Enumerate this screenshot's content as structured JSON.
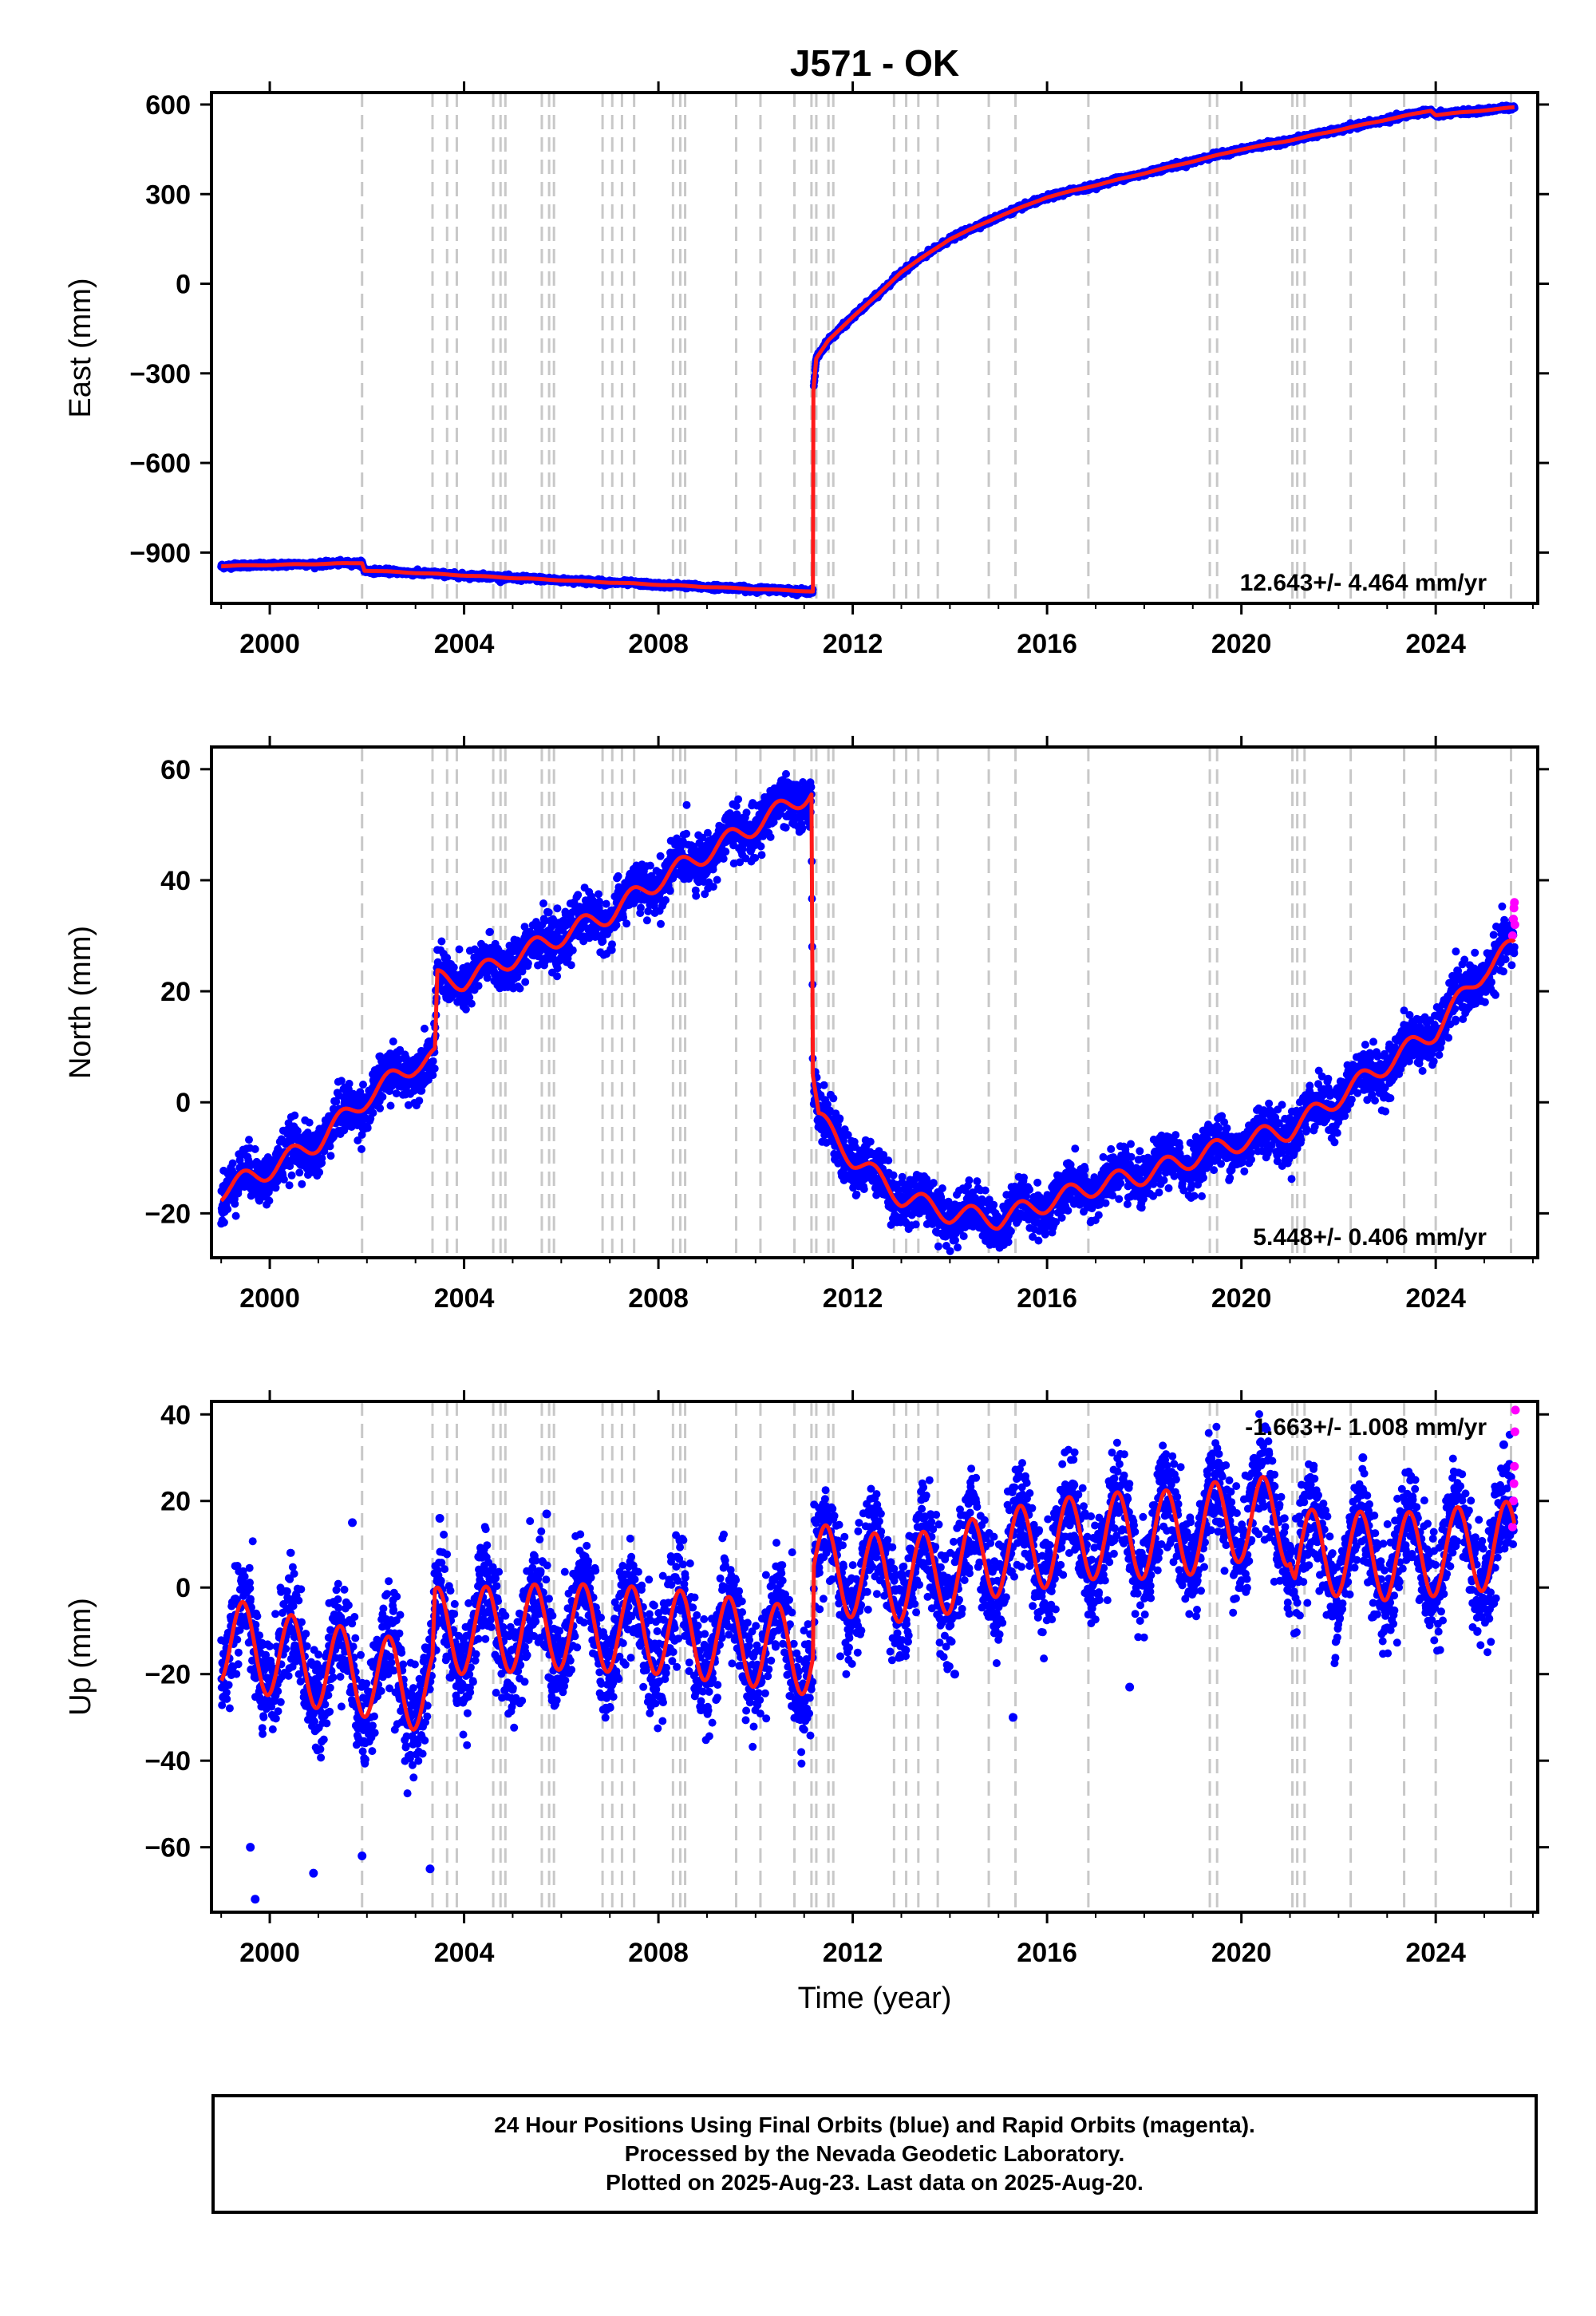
{
  "figure": {
    "title": "J571 - OK",
    "xlabel": "Time (year)",
    "footer": [
      "24 Hour Positions Using Final Orbits (blue) and Rapid Orbits (magenta).",
      "Processed by the Nevada Geodetic Laboratory.",
      "Plotted on 2025-Aug-23. Last data on 2025-Aug-20."
    ]
  },
  "colors": {
    "final_orbits": "#0000ff",
    "rapid_orbits": "#ff00ff",
    "model": "#ff1a1a",
    "event_lines": "#c8c8c8",
    "frame": "#000000"
  },
  "chart_data": [
    {
      "type": "scatter",
      "name": "east",
      "ylabel": "East (mm)",
      "velocity_label": "12.643+/- 4.464 mm/yr",
      "velocity_placement": "bottom-right",
      "xlim": [
        1998.8,
        2026.1
      ],
      "ylim": [
        -1070,
        640
      ],
      "xticks": [
        2000,
        2004,
        2008,
        2012,
        2016,
        2020,
        2024
      ],
      "yticks": [
        -900,
        -600,
        -300,
        0,
        300,
        600
      ],
      "grid": false,
      "model_keypoints": [
        [
          1999.0,
          -945
        ],
        [
          2001.9,
          -935
        ],
        [
          2001.95,
          -960
        ],
        [
          2003.0,
          -968
        ],
        [
          2005.0,
          -985
        ],
        [
          2007.0,
          -1000
        ],
        [
          2009.0,
          -1015
        ],
        [
          2010.0,
          -1022
        ],
        [
          2011.18,
          -1030
        ],
        [
          2011.19,
          -360
        ],
        [
          2011.25,
          -250
        ],
        [
          2011.5,
          -190
        ],
        [
          2012.0,
          -110
        ],
        [
          2012.5,
          -40
        ],
        [
          2013.0,
          40
        ],
        [
          2014.0,
          150
        ],
        [
          2015.0,
          225
        ],
        [
          2016.0,
          290
        ],
        [
          2017.0,
          330
        ],
        [
          2018.0,
          370
        ],
        [
          2019.0,
          410
        ],
        [
          2020.0,
          450
        ],
        [
          2021.0,
          480
        ],
        [
          2022.0,
          515
        ],
        [
          2023.0,
          550
        ],
        [
          2023.9,
          580
        ],
        [
          2024.0,
          565
        ],
        [
          2025.6,
          590
        ]
      ],
      "noise_mm": 4,
      "seasonal_amplitude_mm": 1
    },
    {
      "type": "scatter",
      "name": "north",
      "ylabel": "North (mm)",
      "velocity_label": "5.448+/- 0.406 mm/yr",
      "velocity_placement": "bottom-right",
      "xlim": [
        1998.8,
        2026.1
      ],
      "ylim": [
        -28,
        64
      ],
      "xticks": [
        2000,
        2004,
        2008,
        2012,
        2016,
        2020,
        2024
      ],
      "yticks": [
        -20,
        0,
        20,
        40,
        60
      ],
      "grid": false,
      "model_keypoints": [
        [
          1999.0,
          -16
        ],
        [
          2000.0,
          -12
        ],
        [
          2001.0,
          -7
        ],
        [
          2002.0,
          1
        ],
        [
          2003.0,
          7
        ],
        [
          2003.4,
          8
        ],
        [
          2003.45,
          22
        ],
        [
          2004.0,
          22
        ],
        [
          2005.0,
          26
        ],
        [
          2006.0,
          30
        ],
        [
          2007.0,
          34
        ],
        [
          2008.0,
          40
        ],
        [
          2009.0,
          45
        ],
        [
          2010.0,
          50
        ],
        [
          2011.15,
          56
        ],
        [
          2011.18,
          5
        ],
        [
          2011.3,
          -3
        ],
        [
          2012.0,
          -10
        ],
        [
          2013.0,
          -17
        ],
        [
          2014.0,
          -20
        ],
        [
          2015.0,
          -21
        ],
        [
          2016.0,
          -18
        ],
        [
          2017.0,
          -15
        ],
        [
          2018.0,
          -13
        ],
        [
          2019.0,
          -10
        ],
        [
          2020.0,
          -7
        ],
        [
          2021.0,
          -5
        ],
        [
          2022.0,
          1
        ],
        [
          2023.0,
          7
        ],
        [
          2024.0,
          13
        ],
        [
          2025.0,
          24
        ],
        [
          2025.6,
          28
        ]
      ],
      "noise_mm": 2.2,
      "seasonal_amplitude_mm": 1.8,
      "rapid_points": [
        [
          2025.58,
          30
        ],
        [
          2025.6,
          33
        ],
        [
          2025.61,
          35
        ],
        [
          2025.62,
          36
        ],
        [
          2025.63,
          32
        ]
      ]
    },
    {
      "type": "scatter",
      "name": "up",
      "ylabel": "Up (mm)",
      "velocity_label": "-1.663+/- 1.008 mm/yr",
      "velocity_placement": "top-right",
      "xlim": [
        1998.8,
        2026.1
      ],
      "ylim": [
        -75,
        43
      ],
      "xticks": [
        2000,
        2004,
        2008,
        2012,
        2016,
        2020,
        2024
      ],
      "yticks": [
        -60,
        -40,
        -20,
        0,
        20,
        40
      ],
      "grid": false,
      "model_keypoints": [
        [
          1999.0,
          -12
        ],
        [
          2000.0,
          -15
        ],
        [
          2001.0,
          -18
        ],
        [
          2002.0,
          -20
        ],
        [
          2003.35,
          -24
        ],
        [
          2003.4,
          -10
        ],
        [
          2004.0,
          -10
        ],
        [
          2006.0,
          -9
        ],
        [
          2008.0,
          -10
        ],
        [
          2010.0,
          -13
        ],
        [
          2011.18,
          -15
        ],
        [
          2011.2,
          5
        ],
        [
          2012.0,
          3
        ],
        [
          2013.0,
          2
        ],
        [
          2014.0,
          4
        ],
        [
          2015.0,
          8
        ],
        [
          2016.0,
          10
        ],
        [
          2017.0,
          12
        ],
        [
          2018.0,
          12
        ],
        [
          2019.0,
          13
        ],
        [
          2020.0,
          16
        ],
        [
          2021.0,
          15
        ],
        [
          2021.1,
          8
        ],
        [
          2022.0,
          8
        ],
        [
          2023.0,
          7
        ],
        [
          2024.0,
          8
        ],
        [
          2025.6,
          10
        ]
      ],
      "noise_mm": 6,
      "seasonal_amplitude_mm": 10,
      "outliers": [
        [
          1999.7,
          -72
        ],
        [
          1999.6,
          -60
        ],
        [
          2000.9,
          -66
        ],
        [
          2001.9,
          -62
        ],
        [
          2003.3,
          -65
        ],
        [
          2001.7,
          15
        ],
        [
          2003.5,
          16
        ],
        [
          2005.7,
          17
        ],
        [
          2015.3,
          -30
        ],
        [
          2014.1,
          -20
        ],
        [
          2017.7,
          -23
        ],
        [
          2019.6,
          28
        ],
        [
          2022.5,
          30
        ],
        [
          2025.4,
          33
        ]
      ],
      "rapid_points": [
        [
          2025.58,
          14
        ],
        [
          2025.6,
          20
        ],
        [
          2025.61,
          24
        ],
        [
          2025.62,
          28
        ],
        [
          2025.63,
          36
        ],
        [
          2025.64,
          41
        ]
      ]
    }
  ],
  "event_lines": [
    2001.9,
    2003.35,
    2003.65,
    2003.85,
    2004.6,
    2004.75,
    2004.85,
    2005.6,
    2005.75,
    2005.85,
    2006.85,
    2007.05,
    2007.25,
    2007.5,
    2008.3,
    2008.45,
    2008.55,
    2009.6,
    2010.1,
    2010.8,
    2011.15,
    2011.25,
    2011.5,
    2011.6,
    2012.85,
    2013.1,
    2013.35,
    2013.75,
    2014.8,
    2015.35,
    2016.85,
    2019.35,
    2019.5,
    2021.05,
    2021.15,
    2021.3,
    2022.25,
    2023.35,
    2024.0,
    2025.55
  ]
}
